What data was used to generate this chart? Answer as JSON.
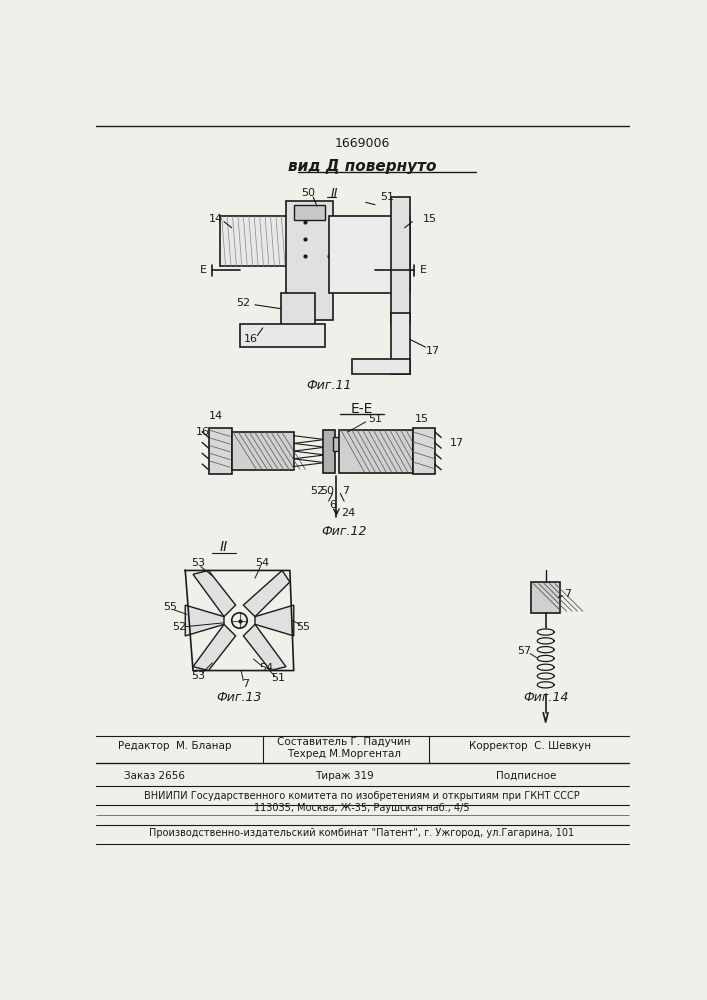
{
  "patent_number": "1669006",
  "title_view": "вид Д повернуто",
  "fig11_label": "Фиг.11",
  "fig12_label": "Фиг.12",
  "fig13_label": "Фиг.13",
  "fig14_label": "Фиг.14",
  "bg_color": "#f0f0eb",
  "line_color": "#1a1a1a"
}
